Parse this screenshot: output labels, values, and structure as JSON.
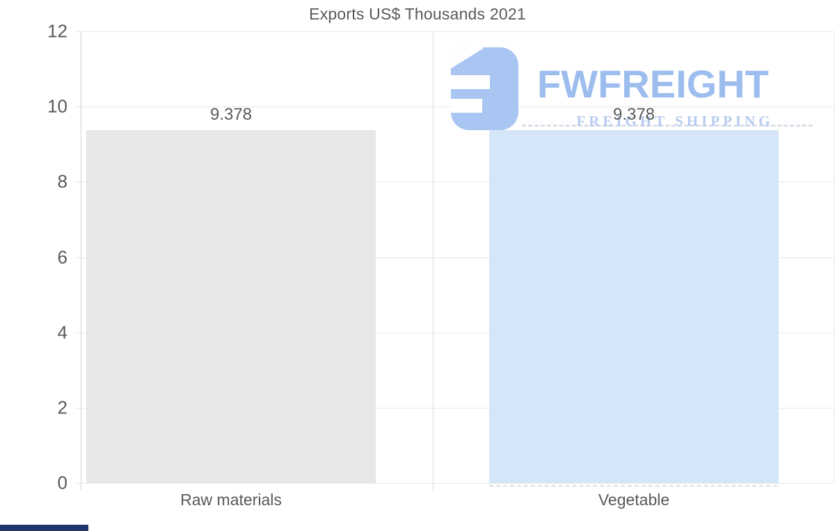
{
  "title": "Exports US$ Thousands 2021",
  "watermark": {
    "brand": "FWFREIGHT",
    "tagline": "FREIGHT SHIPPING",
    "logo_color": "#a9c6f2",
    "brand_color": "#9dbdee"
  },
  "chart_data": {
    "type": "bar",
    "title": "Exports US$ Thousands 2021",
    "categories": [
      "Raw materials",
      "Vegetable"
    ],
    "values": [
      9.378,
      9.378
    ],
    "value_labels": [
      "9.378",
      "9.378"
    ],
    "xlabel": "",
    "ylabel": "",
    "ylim": [
      0,
      12
    ],
    "yticks": [
      0,
      2,
      4,
      6,
      8,
      10,
      12
    ],
    "ytick_labels": [
      "0",
      "2",
      "4",
      "6",
      "8",
      "10",
      "12"
    ],
    "grid": "horizontal",
    "legend": "none",
    "bar_colors": [
      "#e7e7e7",
      "#d4e6f8"
    ],
    "label_color": "#595959",
    "gridline_color": "#e8e8e8"
  }
}
